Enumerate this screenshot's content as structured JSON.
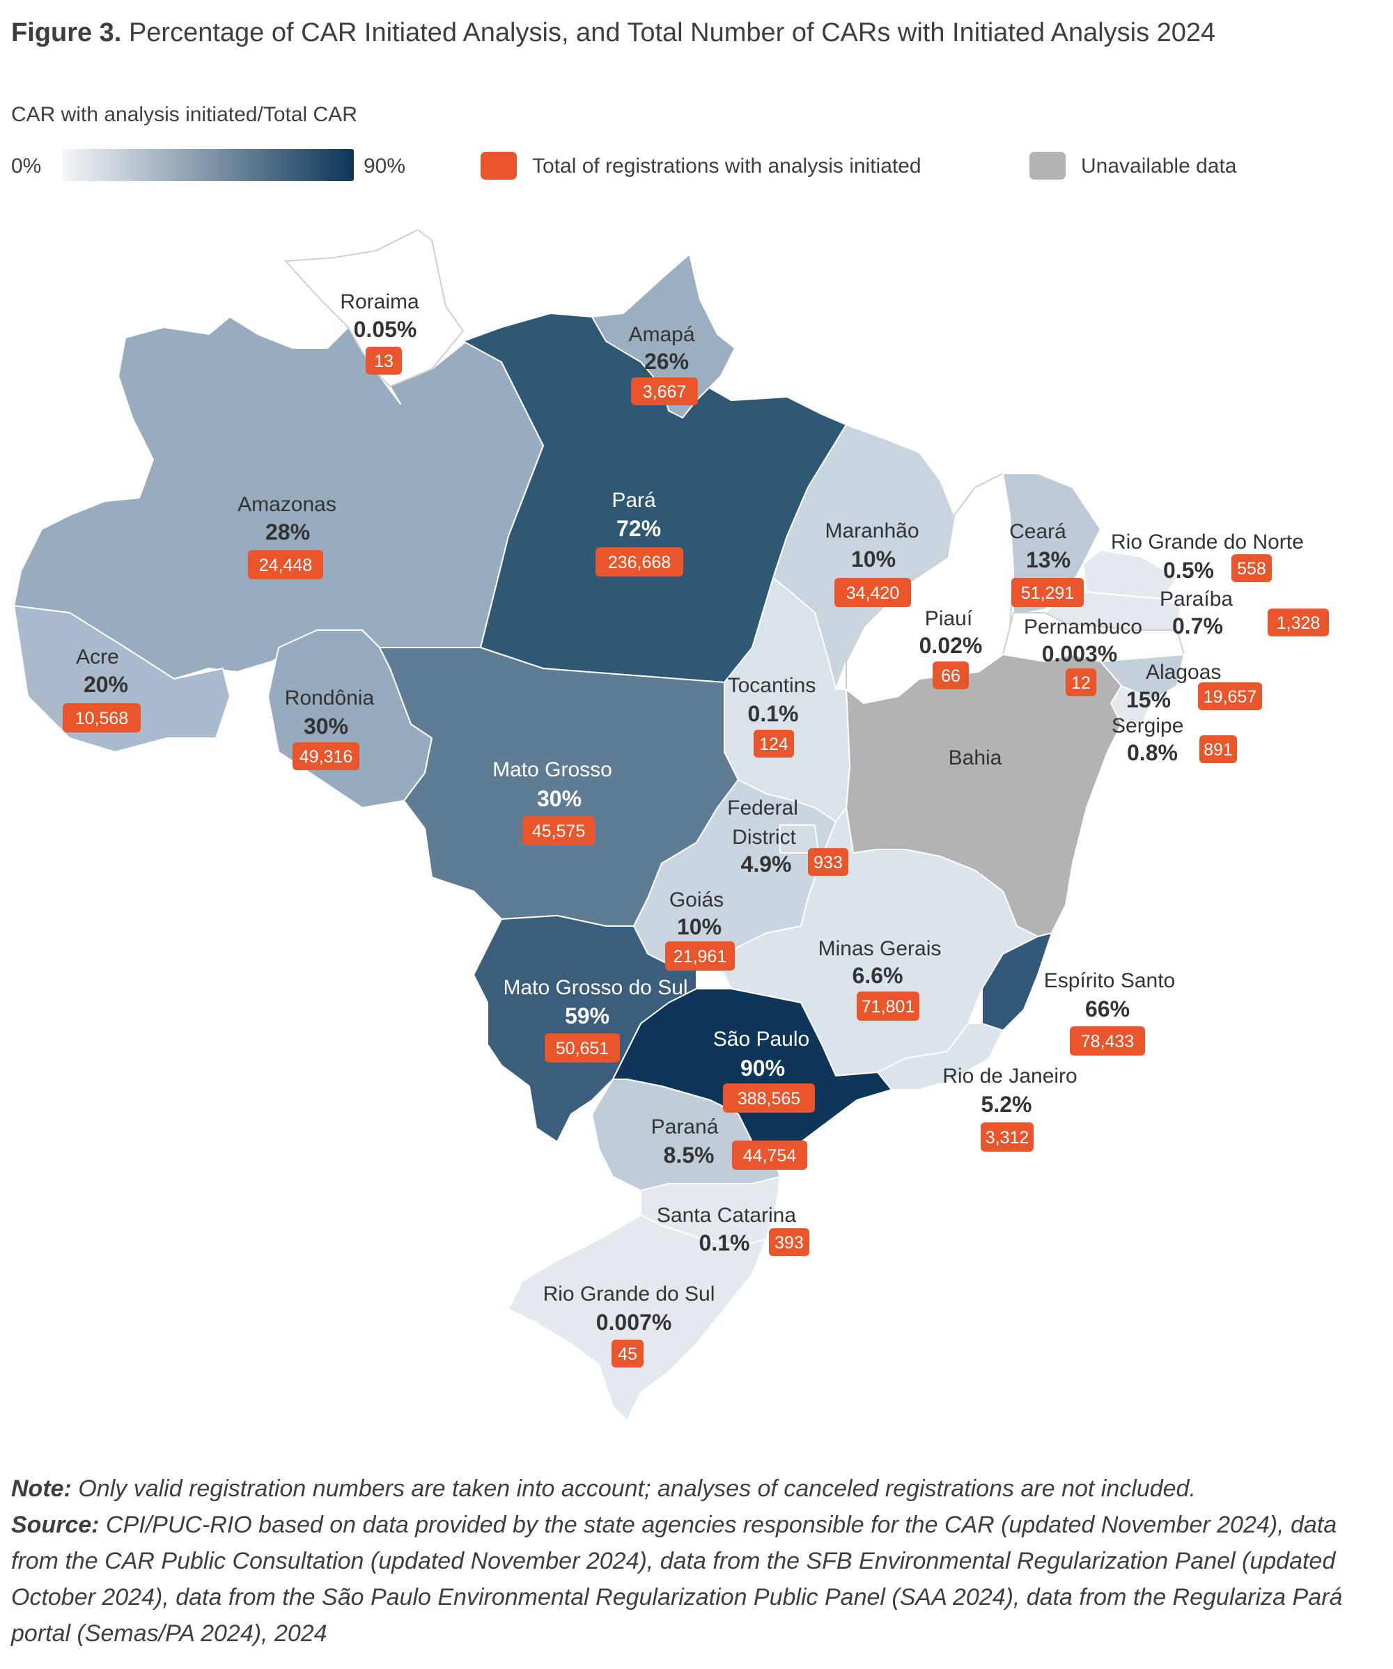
{
  "title": {
    "figure_label": "Figure 3.",
    "text": "Percentage of CAR Initiated Analysis, and Total Number of CARs with Initiated Analysis 2024"
  },
  "legend": {
    "title": "CAR with analysis initiated/Total CAR",
    "min_label": "0%",
    "max_label": "90%",
    "gradient_start_color": "#f4f6f8",
    "gradient_end_color": "#0d3658",
    "badge_label": "Total of registrations with analysis initiated",
    "badge_color": "#e9562b",
    "unavailable_label": "Unavailable data",
    "unavailable_color": "#b3b3b3"
  },
  "map_data": {
    "states": [
      {
        "id": "roraima",
        "name": "Roraima",
        "percent": "0.05%",
        "percent_value": 0.05,
        "total": "13",
        "color": "#ffffff"
      },
      {
        "id": "amapa",
        "name": "Amapá",
        "percent": "26%",
        "percent_value": 26,
        "total": "3,667",
        "color": "#9aafc0"
      },
      {
        "id": "amazonas",
        "name": "Amazonas",
        "percent": "28%",
        "percent_value": 28,
        "total": "24,448",
        "color": "#97acbe"
      },
      {
        "id": "para",
        "name": "Pará",
        "percent": "72%",
        "percent_value": 72,
        "total": "236,668",
        "color": "#2f5875"
      },
      {
        "id": "maranhao",
        "name": "Maranhão",
        "percent": "10%",
        "percent_value": 10,
        "total": "34,420",
        "color": "#c8d4de"
      },
      {
        "id": "ceara",
        "name": "Ceará",
        "percent": "13%",
        "percent_value": 13,
        "total": "51,291",
        "color": "#bccbd7"
      },
      {
        "id": "rio-grande-do-norte",
        "name": "Rio Grande do Norte",
        "percent": "0.5%",
        "percent_value": 0.5,
        "total": "558",
        "color": "#e3e9ef"
      },
      {
        "id": "paraiba",
        "name": "Paraíba",
        "percent": "0.7%",
        "percent_value": 0.7,
        "total": "1,328",
        "color": "#e3e9ef"
      },
      {
        "id": "piaui",
        "name": "Piauí",
        "percent": "0.02%",
        "percent_value": 0.02,
        "total": "66",
        "color": "#ffffff"
      },
      {
        "id": "pernambuco",
        "name": "Pernambuco",
        "percent": "0.003%",
        "percent_value": 0.003,
        "total": "12",
        "color": "#ffffff"
      },
      {
        "id": "alagoas",
        "name": "Alagoas",
        "percent": "15%",
        "percent_value": 15,
        "total": "19,657",
        "color": "#c3d0db"
      },
      {
        "id": "sergipe",
        "name": "Sergipe",
        "percent": "0.8%",
        "percent_value": 0.8,
        "total": "891",
        "color": "#e3e9ef"
      },
      {
        "id": "acre",
        "name": "Acre",
        "percent": "20%",
        "percent_value": 20,
        "total": "10,568",
        "color": "#a8bacb"
      },
      {
        "id": "rondonia",
        "name": "Rondônia",
        "percent": "30%",
        "percent_value": 30,
        "total": "49,316",
        "color": "#96abbd"
      },
      {
        "id": "tocantins",
        "name": "Tocantins",
        "percent": "0.1%",
        "percent_value": 0.1,
        "total": "124",
        "color": "#dae3ea"
      },
      {
        "id": "bahia",
        "name": "Bahia",
        "percent": "",
        "percent_value": null,
        "total": "",
        "color": "#b3b3b3"
      },
      {
        "id": "mato-grosso",
        "name": "Mato Grosso",
        "percent": "30%",
        "percent_value": 30,
        "total": "45,575",
        "color": "#5e7d95"
      },
      {
        "id": "federal-district",
        "name": "Federal District",
        "percent": "4.9%",
        "percent_value": 4.9,
        "total": "933",
        "color": "#d3dde6"
      },
      {
        "id": "goias",
        "name": "Goiás",
        "percent": "10%",
        "percent_value": 10,
        "total": "21,961",
        "color": "#c9d5df"
      },
      {
        "id": "minas-gerais",
        "name": "Minas Gerais",
        "percent": "6.6%",
        "percent_value": 6.6,
        "total": "71,801",
        "color": "#dce4eb"
      },
      {
        "id": "espirito-santo",
        "name": "Espírito Santo",
        "percent": "66%",
        "percent_value": 66,
        "total": "78,433",
        "color": "#33597a"
      },
      {
        "id": "mato-grosso-do-sul",
        "name": "Mato Grosso do Sul",
        "percent": "59%",
        "percent_value": 59,
        "total": "50,651",
        "color": "#3a5e7c"
      },
      {
        "id": "sao-paulo",
        "name": "São Paulo",
        "percent": "90%",
        "percent_value": 90,
        "total": "388,565",
        "color": "#0d3658"
      },
      {
        "id": "rio-de-janeiro",
        "name": "Rio de Janeiro",
        "percent": "5.2%",
        "percent_value": 5.2,
        "total": "3,312",
        "color": "#dce4eb"
      },
      {
        "id": "parana",
        "name": "Paraná",
        "percent": "8.5%",
        "percent_value": 8.5,
        "total": "44,754",
        "color": "#bfcdd9"
      },
      {
        "id": "santa-catarina",
        "name": "Santa Catarina",
        "percent": "0.1%",
        "percent_value": 0.1,
        "total": "393",
        "color": "#e3e9ef"
      },
      {
        "id": "rio-grande-do-sul",
        "name": "Rio Grande do Sul",
        "percent": "0.007%",
        "percent_value": 0.007,
        "total": "45",
        "color": "#e3e9ef"
      }
    ]
  },
  "notes": {
    "note_label": "Note:",
    "note_text": "Only valid registration numbers are taken into account; analyses of canceled registrations are not included.",
    "source_label": "Source:",
    "source_text": "CPI/PUC-RIO based on data provided by the state agencies responsible for the CAR (updated November 2024), data from the CAR Public Consultation (updated November 2024), data from the SFB Environmental Regularization Panel (updated October 2024), data from the São Paulo Environmental Regularization Public Panel (SAA 2024), data from the Regulariza Pará portal (Semas/PA 2024), 2024"
  }
}
